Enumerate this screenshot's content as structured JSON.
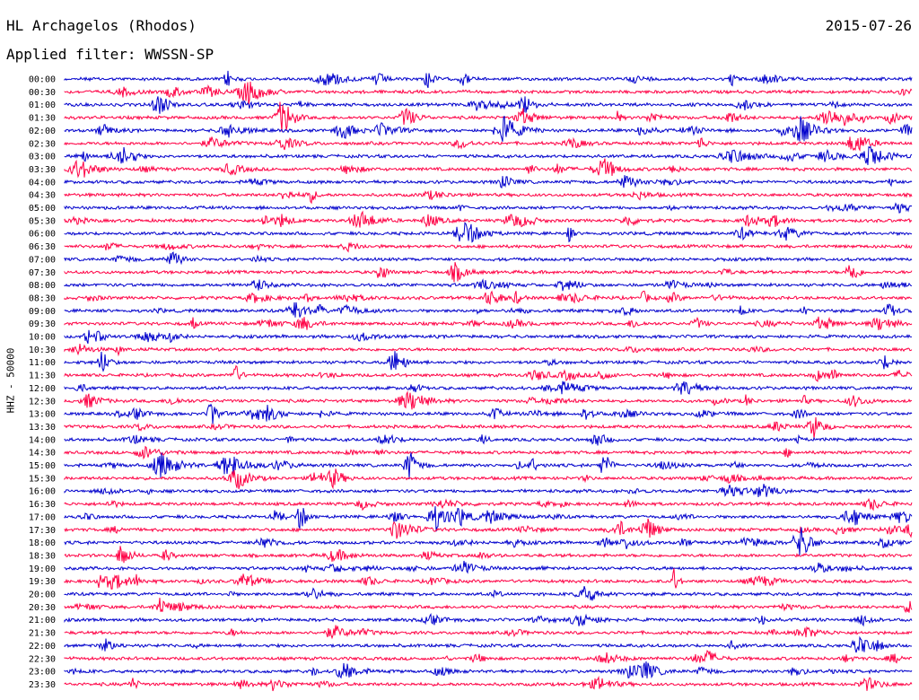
{
  "header": {
    "title": "HL Archagelos (Rhodos)",
    "date": "2015-07-26",
    "filter": "Applied filter: WWSSN-SP"
  },
  "chart_data": {
    "type": "line",
    "title": "HL Archagelos (Rhodos)",
    "ylabel": "HHZ - 50000",
    "xlabel": "",
    "categories": [
      "00:00",
      "00:30",
      "01:00",
      "01:30",
      "02:00",
      "02:30",
      "03:00",
      "03:30",
      "04:00",
      "04:30",
      "05:00",
      "05:30",
      "06:00",
      "06:30",
      "07:00",
      "07:30",
      "08:00",
      "08:30",
      "09:00",
      "09:30",
      "10:00",
      "10:30",
      "11:00",
      "11:30",
      "12:00",
      "12:30",
      "13:00",
      "13:30",
      "14:00",
      "14:30",
      "15:00",
      "15:30",
      "16:00",
      "16:30",
      "17:00",
      "17:30",
      "18:00",
      "18:30",
      "19:00",
      "19:30",
      "20:00",
      "20:30",
      "21:00",
      "21:30",
      "22:00",
      "22:30",
      "23:00",
      "23:30"
    ],
    "series_colors": [
      "#0000cc",
      "#ff0044"
    ],
    "grid": false,
    "legend": "none"
  }
}
